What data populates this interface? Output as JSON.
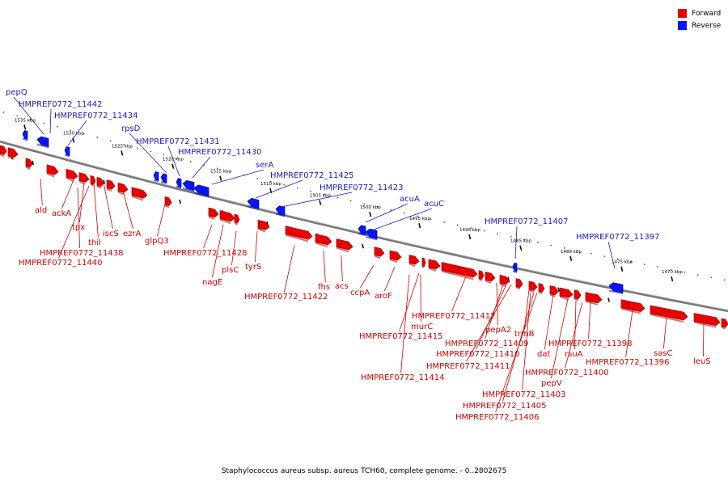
{
  "caption": "Staphylococcus aureus subsp. aureus TCH60, complete genome. - 0..2802675",
  "legend": [
    {
      "label": "Forward",
      "color": "#e80000"
    },
    {
      "label": "Reverse",
      "color": "#0a14ff"
    }
  ],
  "colors": {
    "forward": "#e80000",
    "reverse": "#0a14ff",
    "backbone": "#777777"
  },
  "kbp_labels": [
    "1535 kbp",
    "1530 kbp",
    "1525 kbp",
    "1520 kbp",
    "1515 kbp",
    "1510 kbp",
    "1505 kbp",
    "1500 kbp",
    "1495 kbp",
    "1490 kbp",
    "1485 kbp",
    "1480 kbp",
    "1475 kbp",
    "1470 kbp"
  ],
  "forward_labels": [
    "ald",
    "ackA",
    "tpx",
    "thiI",
    "iscS",
    "ezrA",
    "glpQ3",
    "HMPREF0772_11438",
    "HMPREF0772_11440",
    "HMPREF0772_11428",
    "nagE",
    "plsC",
    "tyrS",
    "HMPREF0772_11422",
    "fhs",
    "acs",
    "ccpA",
    "aroF",
    "HMPREF0772_11412",
    "murC",
    "HMPREF0772_11415",
    "HMPREF0772_11414",
    "pepA2",
    "HMPREF0772_11409",
    "HMPREF0772_11410",
    "HMPREF0772_11411",
    "trmB",
    "dat",
    "HMPREF0772_11403",
    "HMPREF0772_11405",
    "HMPREF0772_11406",
    "rsuA",
    "HMPREF0772_11400",
    "pepV",
    "HMPREF0772_11398",
    "HMPREF0772_11396",
    "sasC",
    "leuS"
  ],
  "reverse_labels": [
    "pepQ",
    "HMPREF0772_11442",
    "HMPREF0772_11434",
    "rpsD",
    "HMPREF0772_11431",
    "HMPREF0772_11430",
    "serA",
    "HMPREF0772_11425",
    "HMPREF0772_11423",
    "acuA",
    "acuC",
    "HMPREF0772_11407",
    "HMPREF0772_11397"
  ]
}
